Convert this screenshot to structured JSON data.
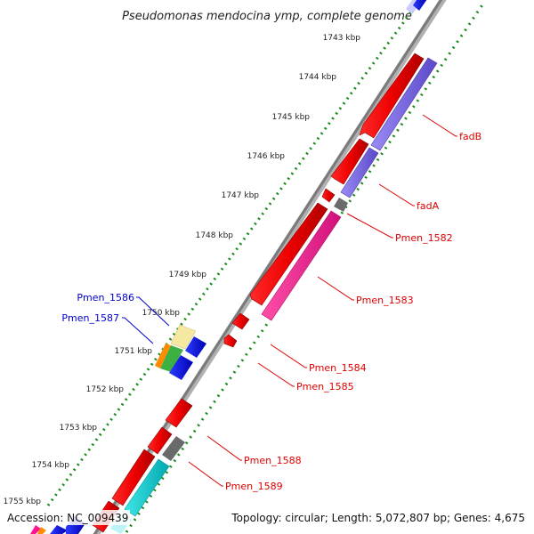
{
  "header": {
    "title": "Pseudomonas mendocina ymp, complete genome"
  },
  "ticks": [
    "1743 kbp",
    "1744 kbp",
    "1745 kbp",
    "1746 kbp",
    "1747 kbp",
    "1748 kbp",
    "1749 kbp",
    "1750 kbp",
    "1751 kbp",
    "1752 kbp",
    "1753 kbp",
    "1754 kbp",
    "1755 kbp"
  ],
  "gene_labels": {
    "fadB": "fadB",
    "fadA": "fadA",
    "pmen_1582": "Pmen_1582",
    "pmen_1583": "Pmen_1583",
    "pmen_1584": "Pmen_1584",
    "pmen_1585": "Pmen_1585",
    "pmen_1588": "Pmen_1588",
    "pmen_1589": "Pmen_1589",
    "pmen_1586": "Pmen_1586",
    "pmen_1587": "Pmen_1587"
  },
  "footer": {
    "accession": "Accession: NC_009439",
    "summary": "Topology: circular; Length: 5,072,807 bp; Genes: 4,675"
  },
  "colors": {
    "cds_forward": "#ff0000",
    "cds_reverse": "#0000ee",
    "feature_purple": "#7b68ee",
    "feature_magenta": "#ff1493",
    "feature_cyan": "#00ced1",
    "feature_gray": "#666666",
    "backbone": "#808080",
    "tick_dots": "#1a8a1a",
    "label_red": "#dd0000",
    "label_blue": "#0000cc"
  }
}
